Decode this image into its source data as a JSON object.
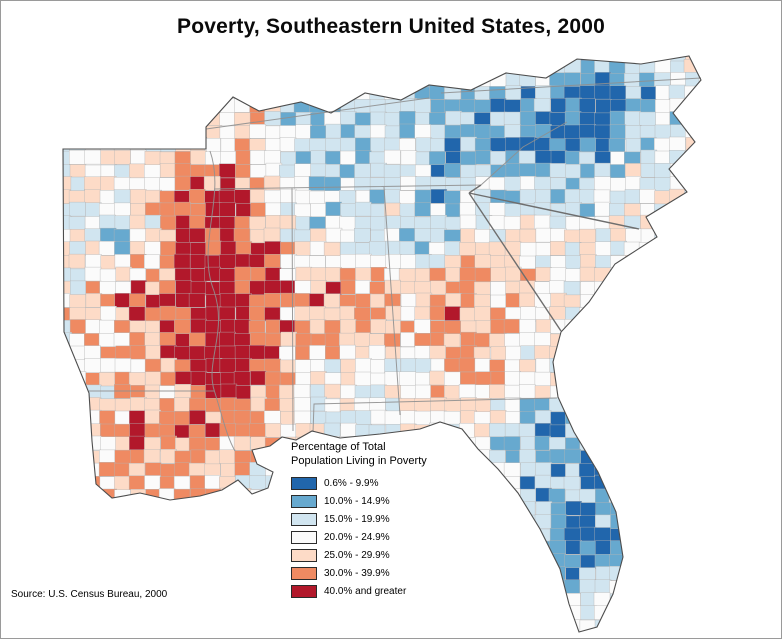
{
  "title": "Poverty, Southeastern United States, 2000",
  "legend": {
    "title_line1": "Percentage of Total",
    "title_line2": "Population Living in Poverty",
    "items": [
      {
        "label": "0.6% - 9.9%",
        "color": "#2166ac"
      },
      {
        "label": "10.0% - 14.9%",
        "color": "#67a9cf"
      },
      {
        "label": "15.0% - 19.9%",
        "color": "#d1e5f0"
      },
      {
        "label": "20.0% - 24.9%",
        "color": "#fbfbfb"
      },
      {
        "label": "25.0% - 29.9%",
        "color": "#fddbc7"
      },
      {
        "label": "30.0% - 39.9%",
        "color": "#ef8a62"
      },
      {
        "label": "40.0% and greater",
        "color": "#b2182b"
      }
    ]
  },
  "source": "Source:  U.S. Census Bureau, 2000"
}
